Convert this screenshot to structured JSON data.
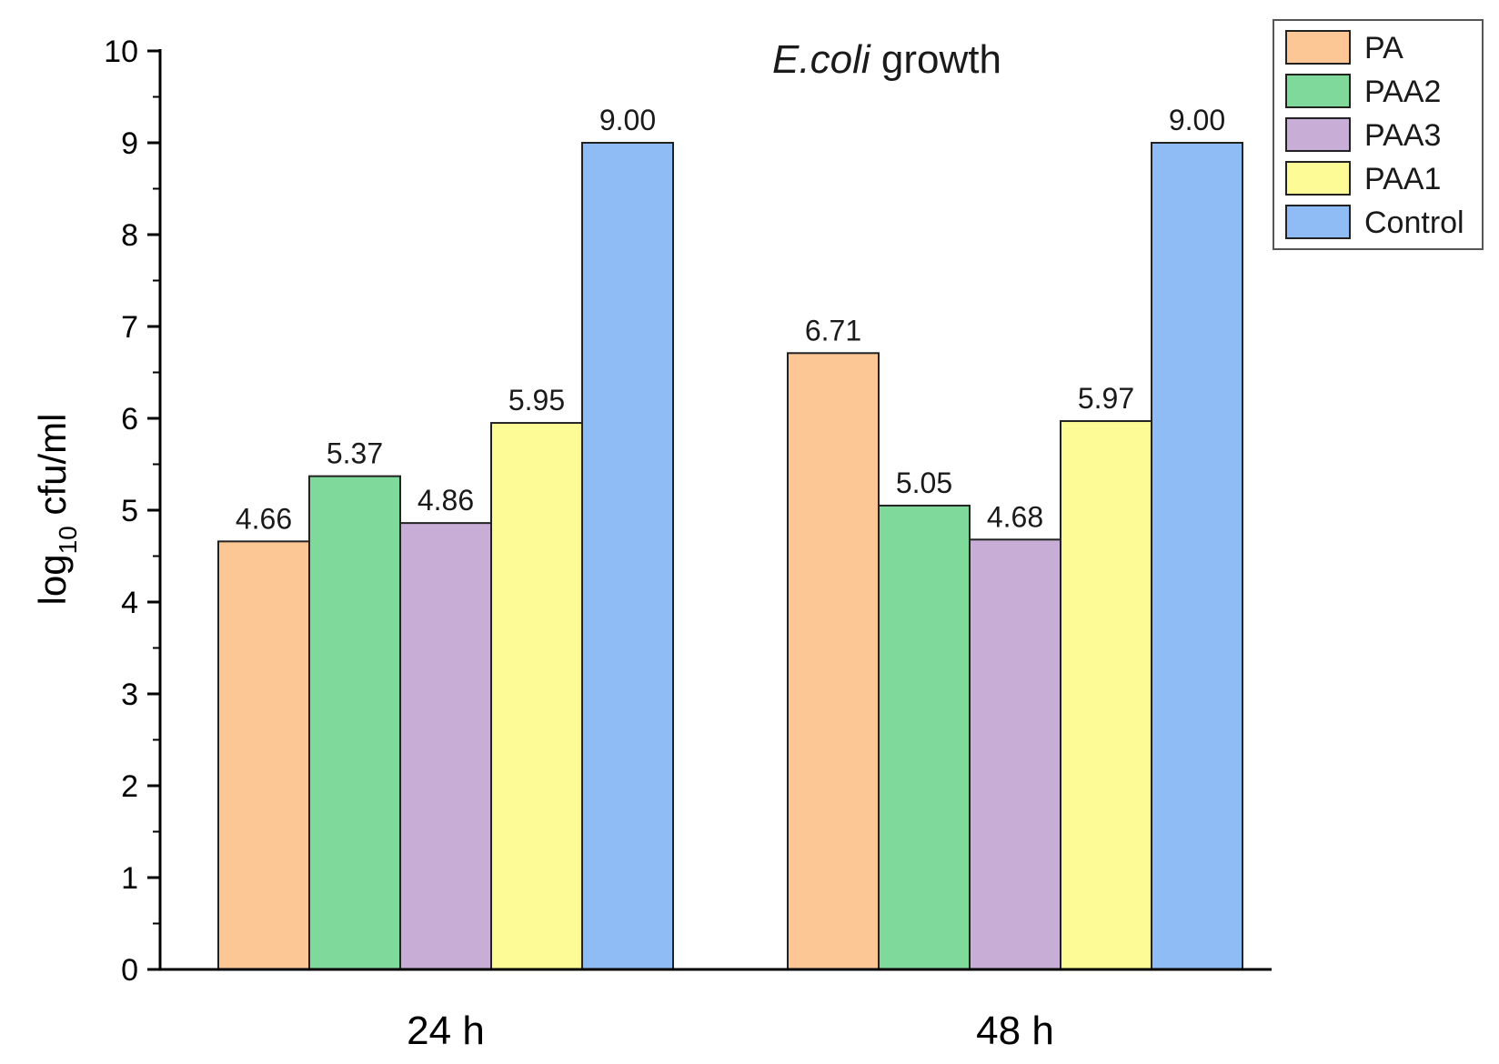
{
  "chart_data": {
    "type": "bar",
    "title_italic": "E.coli",
    "title_rest": " growth",
    "xlabel": "",
    "ylabel_main": "log",
    "ylabel_sub": "10",
    "ylabel_rest": " cfu/ml",
    "ylim": [
      0,
      10
    ],
    "yticks": [
      0,
      1,
      2,
      3,
      4,
      5,
      6,
      7,
      8,
      9,
      10
    ],
    "categories": [
      "24 h",
      "48 h"
    ],
    "series": [
      {
        "name": "PA",
        "color": "#FDC795",
        "values": [
          4.66,
          6.71
        ],
        "labels": [
          "4.66",
          "6.71"
        ]
      },
      {
        "name": "PAA2",
        "color": "#7FD99A",
        "values": [
          5.37,
          5.05
        ],
        "labels": [
          "5.37",
          "5.05"
        ]
      },
      {
        "name": "PAA3",
        "color": "#C8AED6",
        "values": [
          4.86,
          4.68
        ],
        "labels": [
          "4.86",
          "4.68"
        ]
      },
      {
        "name": "PAA1",
        "color": "#FDFB95",
        "values": [
          5.95,
          5.97
        ],
        "labels": [
          "5.95",
          "5.97"
        ]
      },
      {
        "name": "Control",
        "color": "#8FBCF5",
        "values": [
          9.0,
          9.0
        ],
        "labels": [
          "9.00",
          "9.00"
        ]
      }
    ],
    "legend_position": "top-right",
    "grid": false
  }
}
